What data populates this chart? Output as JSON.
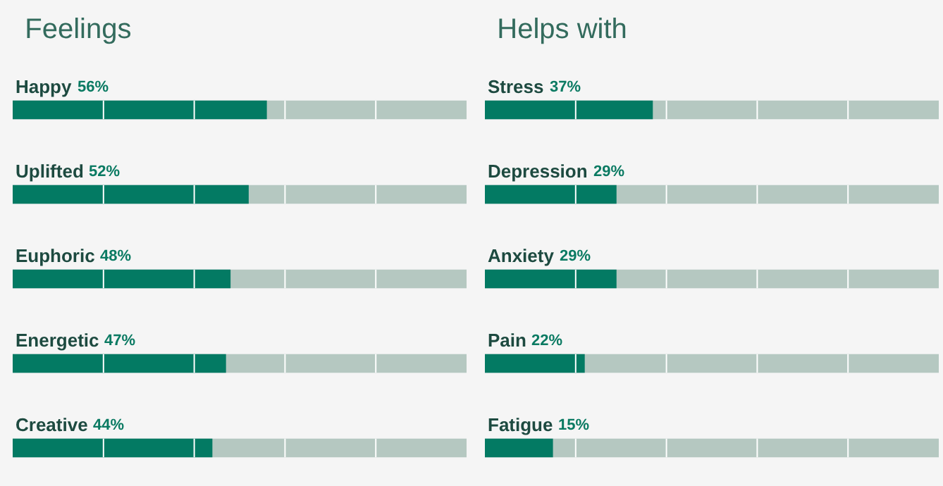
{
  "chart_data": [
    {
      "type": "bar",
      "orientation": "horizontal",
      "title": "Feelings",
      "categories": [
        "Happy",
        "Uplifted",
        "Euphoric",
        "Energetic",
        "Creative"
      ],
      "values": [
        56,
        52,
        48,
        47,
        44
      ],
      "value_labels": [
        "56%",
        "52%",
        "48%",
        "47%",
        "44%"
      ],
      "color": "#037a63",
      "xlim": [
        0,
        100
      ]
    },
    {
      "type": "bar",
      "orientation": "horizontal",
      "title": "Helps with",
      "categories": [
        "Stress",
        "Depression",
        "Anxiety",
        "Pain",
        "Fatigue"
      ],
      "values": [
        37,
        29,
        29,
        22,
        15
      ],
      "value_labels": [
        "37%",
        "29%",
        "29%",
        "22%",
        "15%"
      ],
      "color": "#037a63",
      "xlim": [
        0,
        100
      ]
    }
  ]
}
